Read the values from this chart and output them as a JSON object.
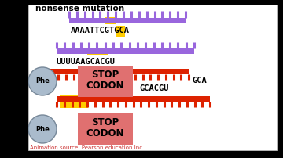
{
  "bg_color": "#ffffff",
  "outer_bg": "#000000",
  "panel_bg": "#ffffff",
  "title_text": "nonsense mutation",
  "annotation_text": "Animation source: Pearson education Inc.",
  "annotation_color": "#cc3333",
  "annotation_fontsize": 5.0,
  "dna_seq1": "AAAATTCGTGCA",
  "rna_seq2": "UUUUAAGCACGU",
  "gca_text": "GCA",
  "gcacgu_text": "GCACGU",
  "purple": "#9966dd",
  "red": "#dd2200",
  "yellow": "#ffcc00",
  "stop_color": "#e07070",
  "phe_color": "#aabbcc",
  "phe_edge": "#778899",
  "white": "#ffffff",
  "black": "#000000"
}
